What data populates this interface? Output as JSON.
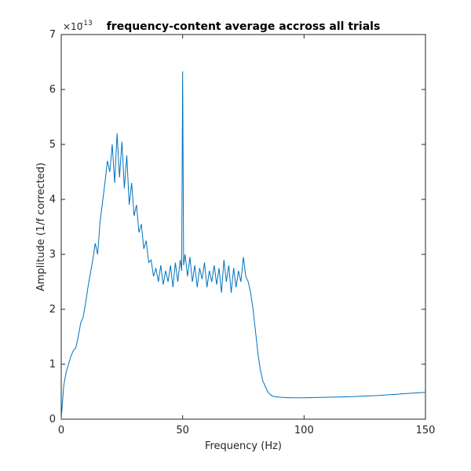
{
  "chart_data": {
    "type": "line",
    "title": "frequency-content average accross all trials",
    "x_label": "Frequency (Hz)",
    "y_label": "Amplitude (1/f corrected)",
    "y_multiplier": {
      "base": "×10",
      "exponent": "-13"
    },
    "xlim": [
      0,
      150
    ],
    "ylim": [
      0,
      7
    ],
    "xticks": [
      0,
      50,
      100,
      150
    ],
    "yticks": [
      0,
      1,
      2,
      3,
      4,
      5,
      6,
      7
    ],
    "grid": false,
    "x": [
      0,
      1,
      2,
      3,
      4,
      5,
      6,
      7,
      8,
      9,
      10,
      11,
      12,
      13,
      14,
      15,
      16,
      17,
      18,
      19,
      20,
      21,
      22,
      23,
      24,
      25,
      26,
      27,
      28,
      29,
      30,
      31,
      32,
      33,
      34,
      35,
      36,
      37,
      38,
      39,
      40,
      41,
      42,
      43,
      44,
      45,
      46,
      47,
      48,
      49,
      49.6,
      50,
      50.4,
      51,
      52,
      53,
      54,
      55,
      56,
      57,
      58,
      59,
      60,
      61,
      62,
      63,
      64,
      65,
      66,
      67,
      68,
      69,
      70,
      71,
      72,
      73,
      74,
      75,
      76,
      77,
      78,
      79,
      80,
      81,
      82,
      83,
      84,
      85,
      86,
      87,
      88,
      90,
      95,
      100,
      110,
      120,
      130,
      140,
      150
    ],
    "series": [
      {
        "color": "#0072bd",
        "values": [
          0.0,
          0.6,
          0.85,
          1.0,
          1.15,
          1.25,
          1.3,
          1.5,
          1.75,
          1.85,
          2.1,
          2.4,
          2.65,
          2.9,
          3.2,
          3.0,
          3.6,
          3.95,
          4.3,
          4.7,
          4.5,
          5.0,
          4.3,
          5.2,
          4.4,
          5.05,
          4.2,
          4.8,
          3.9,
          4.3,
          3.7,
          3.9,
          3.4,
          3.55,
          3.1,
          3.25,
          2.85,
          2.9,
          2.6,
          2.75,
          2.5,
          2.8,
          2.45,
          2.7,
          2.5,
          2.8,
          2.4,
          2.85,
          2.5,
          2.9,
          2.7,
          6.33,
          2.8,
          3.0,
          2.6,
          2.95,
          2.5,
          2.8,
          2.4,
          2.75,
          2.55,
          2.85,
          2.4,
          2.7,
          2.5,
          2.8,
          2.45,
          2.75,
          2.3,
          2.9,
          2.5,
          2.8,
          2.3,
          2.75,
          2.4,
          2.7,
          2.5,
          2.95,
          2.6,
          2.5,
          2.3,
          2.0,
          1.6,
          1.2,
          0.9,
          0.7,
          0.6,
          0.5,
          0.45,
          0.42,
          0.41,
          0.4,
          0.39,
          0.39,
          0.4,
          0.41,
          0.43,
          0.46,
          0.49
        ]
      }
    ]
  }
}
